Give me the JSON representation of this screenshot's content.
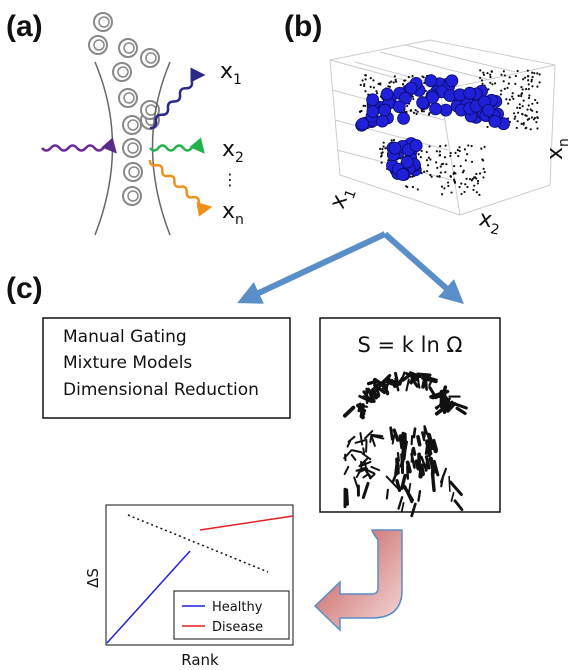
{
  "panels": {
    "a": "(a)",
    "b": "(b)",
    "c": "(c)"
  },
  "panel_a": {
    "outputs": [
      {
        "base": "x",
        "sub": "1"
      },
      {
        "base": "x",
        "sub": "2"
      },
      {
        "base": "x",
        "sub": "n"
      }
    ],
    "ellipsis": "⋮"
  },
  "panel_b": {
    "axes": [
      {
        "base": "x",
        "sub": "1"
      },
      {
        "base": "x",
        "sub": "2"
      },
      {
        "base": "x",
        "sub": "n"
      }
    ]
  },
  "methods": [
    "Manual Gating",
    "Mixture Models",
    "Dimensional Reduction"
  ],
  "equation": "S = k ln Ω",
  "plot": {
    "ylabel": "ΔS",
    "xlabel": "Rank",
    "legend": [
      "Healthy",
      "Disease"
    ]
  }
}
